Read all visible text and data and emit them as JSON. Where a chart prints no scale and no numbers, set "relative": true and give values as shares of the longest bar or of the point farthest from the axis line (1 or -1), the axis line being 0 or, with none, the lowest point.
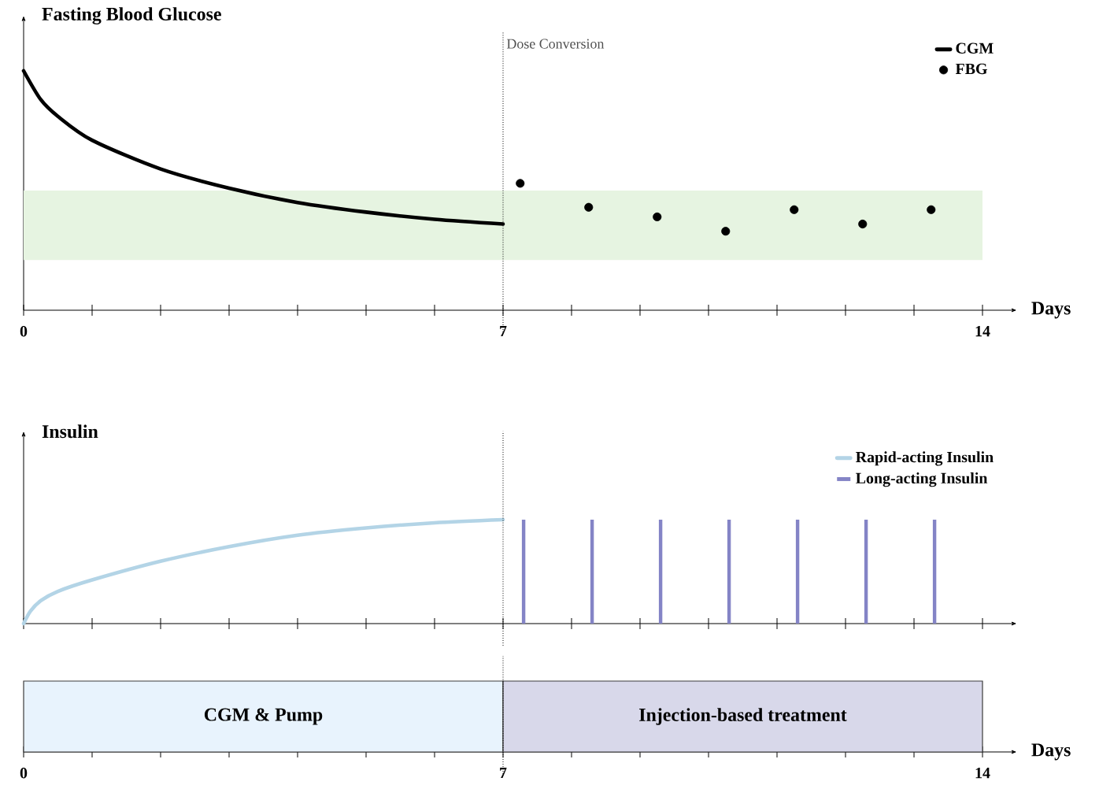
{
  "chart_data": [
    {
      "type": "line",
      "ylabel": "Fasting Blood Glucose",
      "xlabel": "Days",
      "relative": true,
      "xlim": [
        0,
        14.5
      ],
      "xticks": [
        0,
        {
          "value": 1,
          "label": null
        },
        {
          "value": 2,
          "label": null
        },
        {
          "value": 3,
          "label": null
        },
        {
          "value": 4,
          "label": null
        },
        {
          "value": 5,
          "label": null
        },
        {
          "value": 6,
          "label": null
        },
        7,
        {
          "value": 8,
          "label": null
        },
        {
          "value": 9,
          "label": null
        },
        {
          "value": 10,
          "label": null
        },
        {
          "value": 11,
          "label": null
        },
        {
          "value": 12,
          "label": null
        },
        {
          "value": 13,
          "label": null
        },
        14
      ],
      "tick_labels": "x",
      "legend": "top right",
      "ref_lines": [
        {
          "axis": "x",
          "value": 7,
          "label": "Dose Conversion",
          "line_style": "dotted"
        }
      ],
      "bands": [
        {
          "axis": "y",
          "from": 0.21,
          "to": 0.5,
          "color": "#e6f4e1"
        }
      ],
      "series": [
        {
          "name": "CGM",
          "type": "line",
          "color": "#000000",
          "x": [
            0,
            0.25,
            0.5,
            1,
            2,
            3,
            4,
            5,
            6,
            7
          ],
          "values": [
            1,
            0.88,
            0.81,
            0.71,
            0.59,
            0.51,
            0.45,
            0.41,
            0.38,
            0.36
          ]
        },
        {
          "name": "FBG",
          "type": "scatter",
          "marker": "circle",
          "color": "#000000",
          "x": [
            7.25,
            8.25,
            9.25,
            10.25,
            11.25,
            12.25,
            13.25
          ],
          "values": [
            0.53,
            0.43,
            0.39,
            0.33,
            0.42,
            0.36,
            0.42
          ]
        }
      ]
    },
    {
      "type": "line",
      "ylabel": "Insulin",
      "relative": true,
      "xlim": [
        0,
        14.5
      ],
      "xticks": [
        {
          "value": 0,
          "label": null
        },
        {
          "value": 1,
          "label": null
        },
        {
          "value": 2,
          "label": null
        },
        {
          "value": 3,
          "label": null
        },
        {
          "value": 4,
          "label": null
        },
        {
          "value": 5,
          "label": null
        },
        {
          "value": 6,
          "label": null
        },
        {
          "value": 7,
          "label": null
        },
        {
          "value": 8,
          "label": null
        },
        {
          "value": 9,
          "label": null
        },
        {
          "value": 10,
          "label": null
        },
        {
          "value": 11,
          "label": null
        },
        {
          "value": 12,
          "label": null
        },
        {
          "value": 13,
          "label": null
        },
        {
          "value": 14,
          "label": null
        }
      ],
      "tick_labels": false,
      "legend": "top right",
      "ref_lines": [
        {
          "axis": "x",
          "value": 7,
          "line_style": "dotted"
        }
      ],
      "series": [
        {
          "name": "Rapid-acting Insulin",
          "type": "line",
          "color": "#b3d4e6",
          "x": [
            0,
            0.1,
            0.25,
            0.5,
            1,
            2,
            3,
            4,
            5,
            6,
            7
          ],
          "values": [
            0,
            0.12,
            0.22,
            0.31,
            0.42,
            0.6,
            0.74,
            0.85,
            0.92,
            0.97,
            1
          ]
        },
        {
          "name": "Long-acting Insulin",
          "type": "bar",
          "color": "#8484c6",
          "x": [
            7.3,
            8.3,
            9.3,
            10.3,
            11.3,
            12.3,
            13.3
          ],
          "values": [
            1,
            1,
            1,
            1,
            1,
            1,
            1
          ]
        }
      ]
    },
    {
      "type": "bar",
      "orientation": "horizontal",
      "stacked": true,
      "xlabel": "Days",
      "categories": [
        null
      ],
      "xlim": [
        0,
        14.5
      ],
      "xticks": [
        0,
        {
          "value": 1,
          "label": null
        },
        {
          "value": 2,
          "label": null
        },
        {
          "value": 3,
          "label": null
        },
        {
          "value": 4,
          "label": null
        },
        {
          "value": 5,
          "label": null
        },
        {
          "value": 6,
          "label": null
        },
        7,
        {
          "value": 8,
          "label": null
        },
        {
          "value": 9,
          "label": null
        },
        {
          "value": 10,
          "label": null
        },
        {
          "value": 11,
          "label": null
        },
        {
          "value": 12,
          "label": null
        },
        {
          "value": 13,
          "label": null
        },
        14
      ],
      "tick_labels": "x",
      "ref_lines": [
        {
          "axis": "x",
          "value": 7,
          "line_style": "dotted"
        }
      ],
      "series": [
        {
          "name": "CGM & Pump",
          "color": "#e8f3fd",
          "values": [
            7
          ]
        },
        {
          "name": "Injection-based treatment",
          "color": "#d8d8ea",
          "values": [
            7
          ]
        }
      ]
    }
  ]
}
